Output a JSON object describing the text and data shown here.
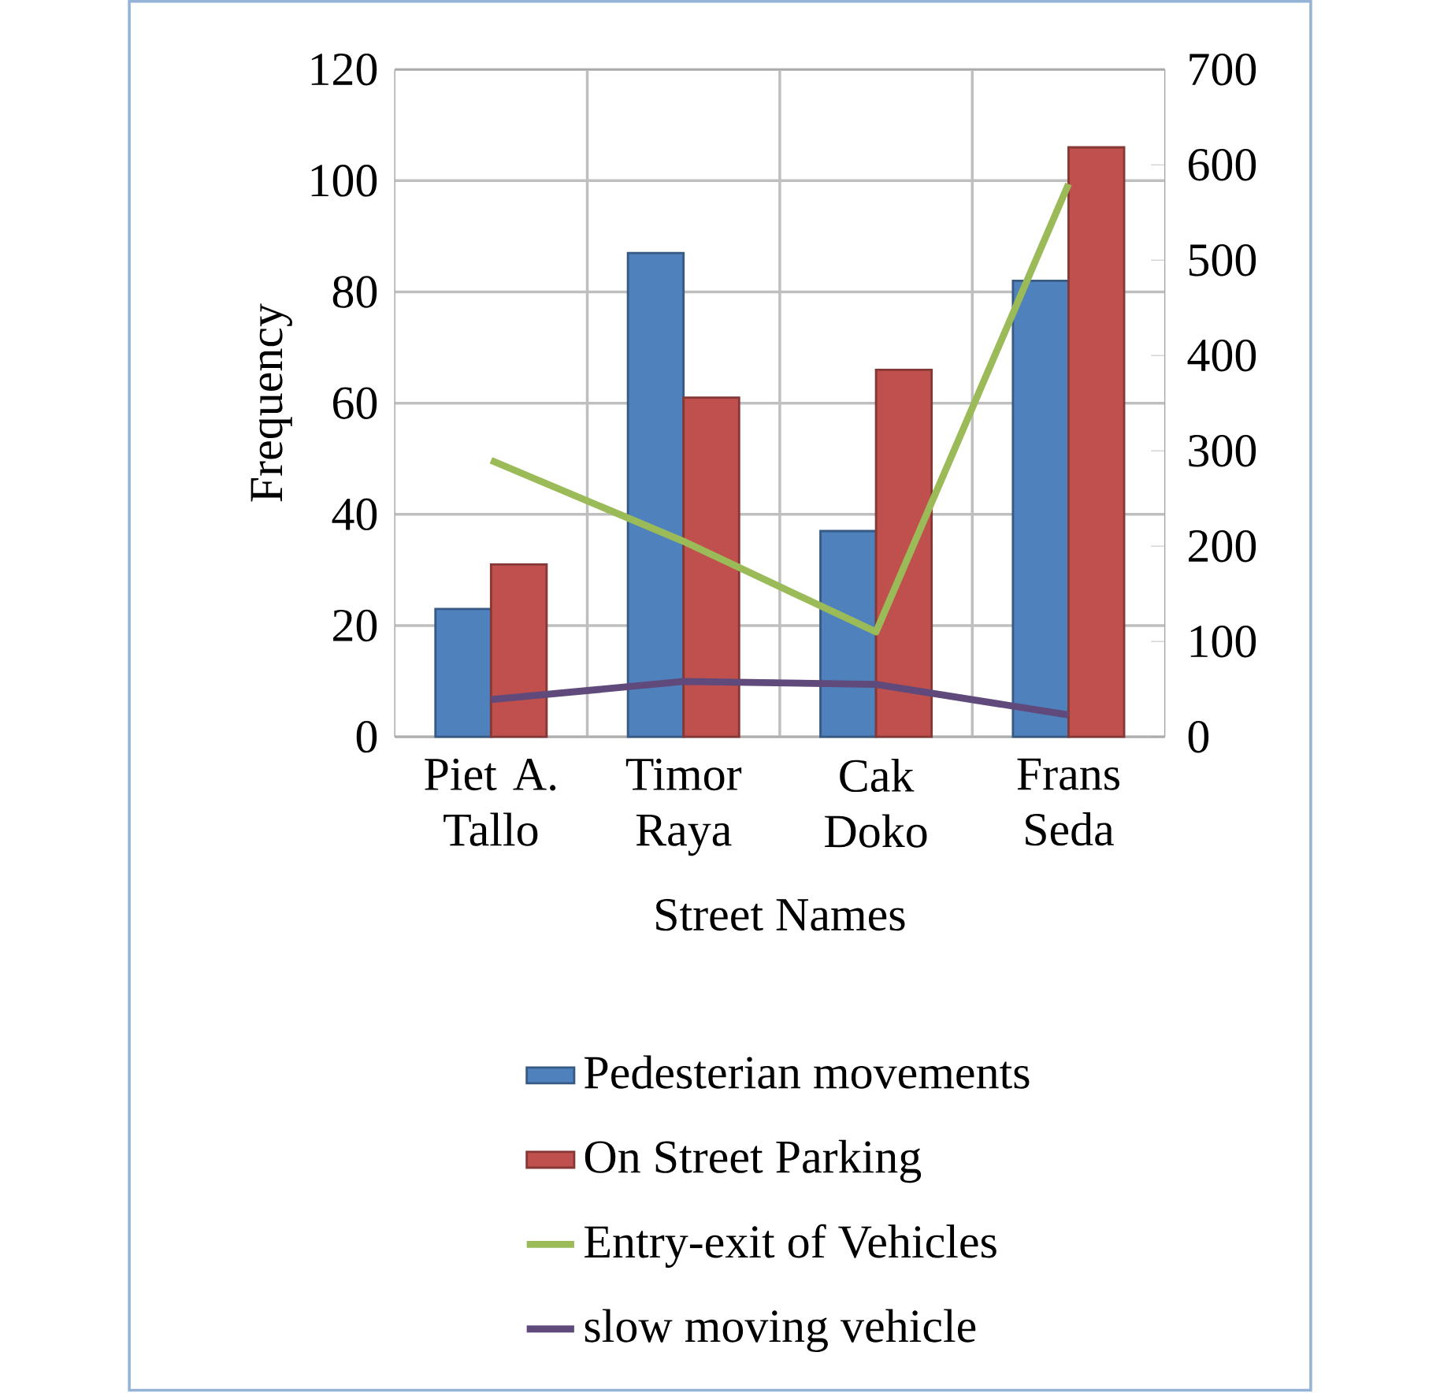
{
  "chart_data": {
    "type": "bar",
    "xlabel": "Street Names",
    "ylabel": "Frequency",
    "categories": [
      "Piet A. Tallo",
      "Timor Raya",
      "Cak Doko",
      "Frans Seda"
    ],
    "series": [
      {
        "name": "Pedesterian movements",
        "color": "#4f81bd",
        "values": [
          23,
          87,
          37,
          82
        ]
      },
      {
        "name": "On Street Parking",
        "color": "#c0504d",
        "values": [
          31,
          61,
          66,
          106
        ]
      },
      {
        "name": "Entry-exit of Vehicles",
        "color": "#9bbb59",
        "type": "line",
        "axis": "y2",
        "values": [
          290,
          205,
          110,
          580
        ]
      },
      {
        "name": "slow moving vehicle",
        "color": "#604a7b",
        "type": "line",
        "axis": "y2",
        "values": [
          39,
          58,
          55,
          23
        ]
      }
    ],
    "ylim": [
      0,
      120
    ],
    "yticks": [
      0,
      20,
      40,
      60,
      80,
      100,
      120
    ],
    "y2lim": [
      0,
      700
    ],
    "y2ticks": [
      0,
      100,
      200,
      300,
      400,
      500,
      600,
      700
    ],
    "grid": true,
    "legend": "bottom",
    "marker": "none"
  }
}
